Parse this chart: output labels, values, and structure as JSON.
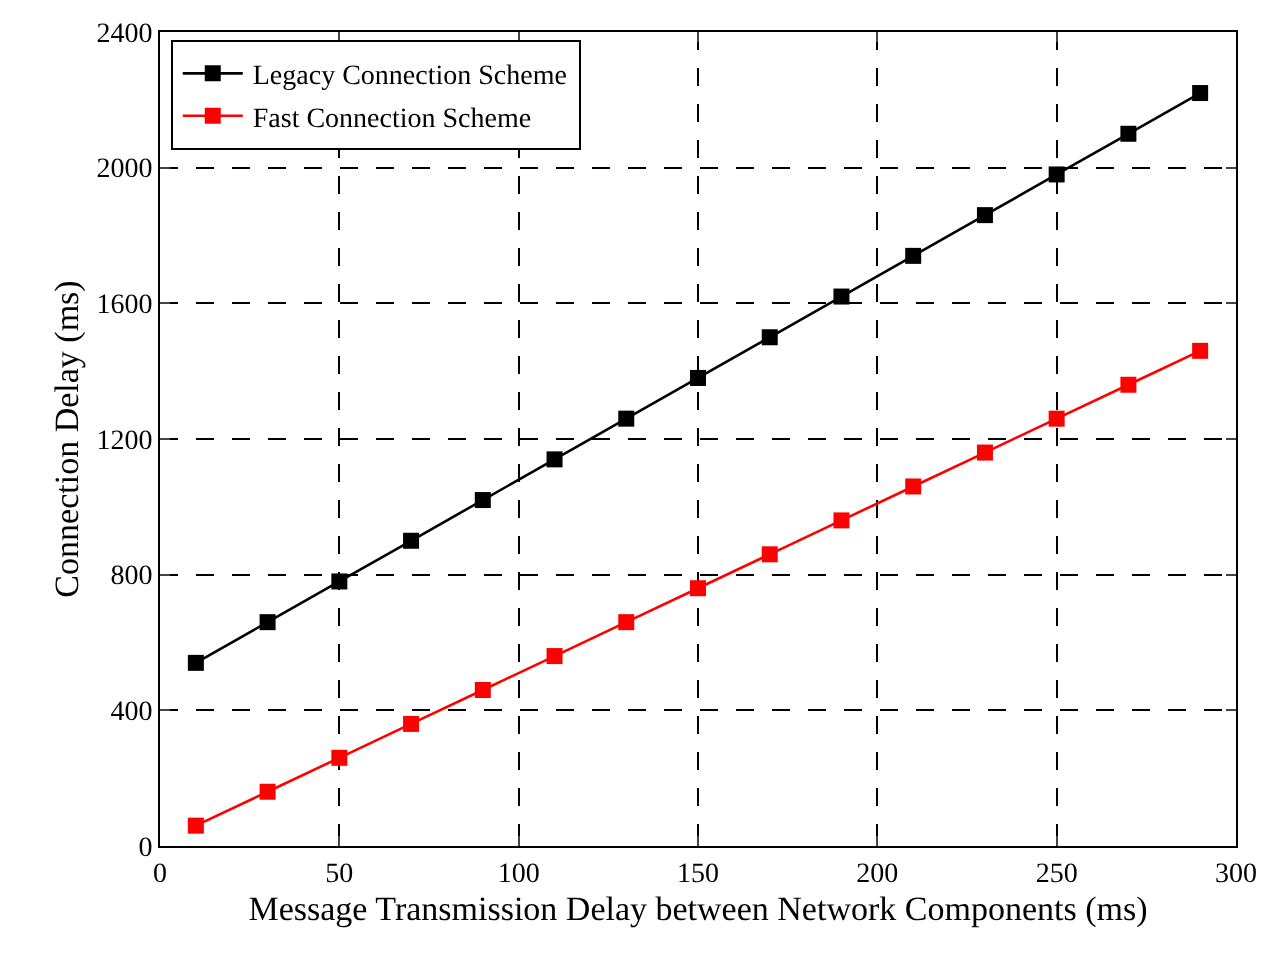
{
  "chart_data": {
    "type": "line",
    "xlabel": "Message Transmission Delay between Network Components (ms)",
    "ylabel": "Connection Delay (ms)",
    "x": [
      10,
      30,
      50,
      70,
      90,
      110,
      130,
      150,
      170,
      190,
      210,
      230,
      250,
      270,
      290
    ],
    "series": [
      {
        "name": "Legacy Connection Scheme",
        "color": "#000000",
        "values": [
          540,
          660,
          780,
          900,
          1020,
          1140,
          1260,
          1380,
          1500,
          1620,
          1740,
          1860,
          1980,
          2100,
          2220
        ]
      },
      {
        "name": "Fast Connection Scheme",
        "color": "#ff0000",
        "values": [
          60,
          160,
          260,
          360,
          460,
          560,
          660,
          760,
          860,
          960,
          1060,
          1160,
          1260,
          1360,
          1460
        ]
      }
    ],
    "xlim": [
      0,
      300
    ],
    "xticks": [
      0,
      50,
      100,
      150,
      200,
      250,
      300
    ],
    "ylim": [
      0,
      2400
    ],
    "yticks": [
      0,
      400,
      800,
      1200,
      1600,
      2000,
      2400
    ],
    "grid": true,
    "legend": "top left",
    "marker": "square",
    "line_style": "solid"
  }
}
